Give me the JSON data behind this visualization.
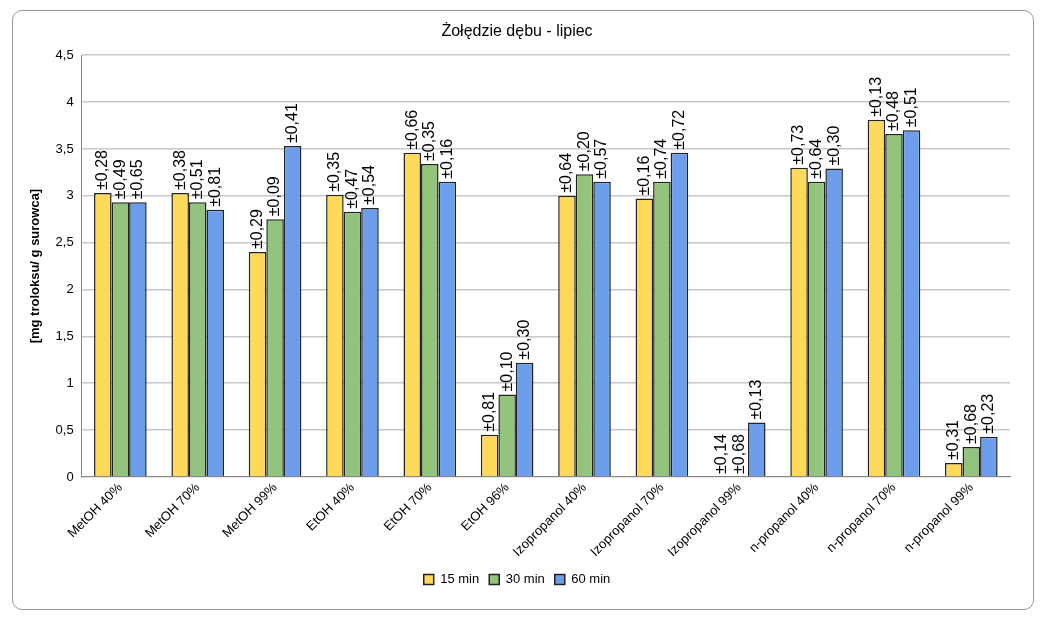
{
  "chart_data": {
    "type": "bar",
    "title": "Żołędzie dębu - lipiec",
    "ylabel": "[mg troloksu/ g surowca]",
    "categories": [
      "MetOH 40%",
      "MetOH 70%",
      "MetOH 99%",
      "EtOH 40%",
      "EtOH 70%",
      "EtOH 96%",
      "Izopropanol 40%",
      "Izopropanol 70%",
      "Izopropanol 99%",
      "n-propanol 40%",
      "n-propanol 70%",
      "n-propanol 99%"
    ],
    "series": [
      {
        "name": "15 min",
        "color": "#ffd95a",
        "values": [
          3.03,
          3.03,
          2.4,
          3.01,
          3.46,
          0.45,
          3.0,
          2.97,
          null,
          3.3,
          3.81,
          0.15
        ]
      },
      {
        "name": "30 min",
        "color": "#93c47d",
        "values": [
          2.93,
          2.93,
          2.75,
          2.83,
          3.34,
          0.88,
          3.23,
          3.15,
          null,
          3.15,
          3.66,
          0.32
        ]
      },
      {
        "name": "60 min",
        "color": "#6d9eeb",
        "values": [
          2.93,
          2.85,
          3.53,
          2.87,
          3.15,
          1.22,
          3.15,
          3.46,
          0.58,
          3.29,
          3.7,
          0.43
        ]
      }
    ],
    "annotations": [
      "±0,28",
      "±0,49",
      "±0,65",
      "±0,38",
      "±0,51",
      "±0,81",
      "±0,29",
      "±0,09",
      "±0,41",
      "±0,35",
      "±0,47",
      "±0,54",
      "±0,66",
      "±0,35",
      "±0,16",
      "±0,81",
      "±0,10",
      "±0,30",
      "±0,64",
      "±0,20",
      "±0,57",
      "±0,16",
      "±0,74",
      "±0,72",
      "±0,14",
      "±0,68",
      "±0,13",
      "±0,73",
      "±0,64",
      "±0,30",
      "±0,13",
      "±0,48",
      "±0,51",
      "±0,31",
      "±0,68",
      "±0,23"
    ],
    "ylim": [
      0,
      4.5
    ],
    "yticks": [
      0,
      {
        "value": 0.5,
        "label": "0,5"
      },
      1,
      {
        "value": 1.5,
        "label": "1,5"
      },
      2,
      {
        "value": 2.5,
        "label": "2,5"
      },
      3,
      {
        "value": 3.5,
        "label": "3,5"
      },
      4,
      {
        "value": 4.5,
        "label": "4,5"
      }
    ],
    "grid": "y",
    "legend": "bottom"
  }
}
